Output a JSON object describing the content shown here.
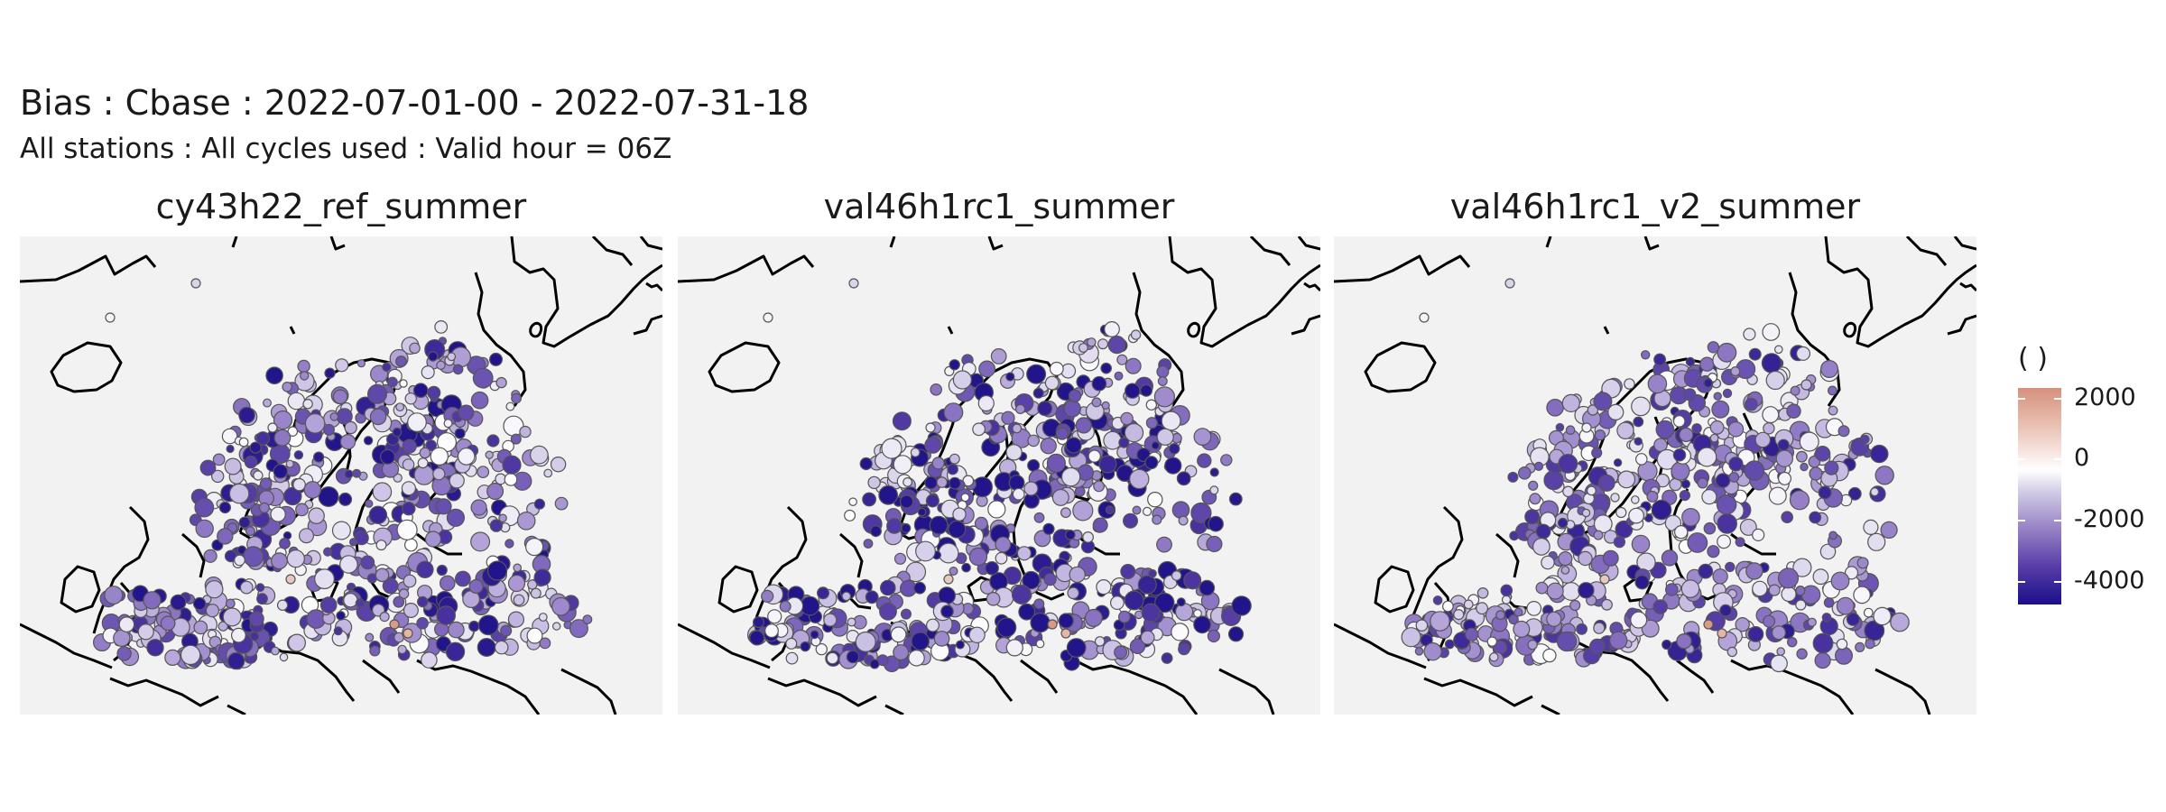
{
  "title": "Bias : Cbase : 2022-07-01-00 - 2022-07-31-18",
  "subtitle": "All stations : All cycles used : Valid hour = 06Z",
  "panels": [
    {
      "name": "cy43h22_ref_summer",
      "shift": 0.45
    },
    {
      "name": "val46h1rc1_summer",
      "shift": 0.75
    },
    {
      "name": "val46h1rc1_v2_summer",
      "shift": 0.3
    }
  ],
  "legend": {
    "title": "( )",
    "ticks": [
      "2000",
      "0",
      "-2000",
      "-4000"
    ],
    "colors": [
      "#d6907c",
      "#ffffff",
      "#9a86c6",
      "#1a0f8a"
    ]
  }
}
